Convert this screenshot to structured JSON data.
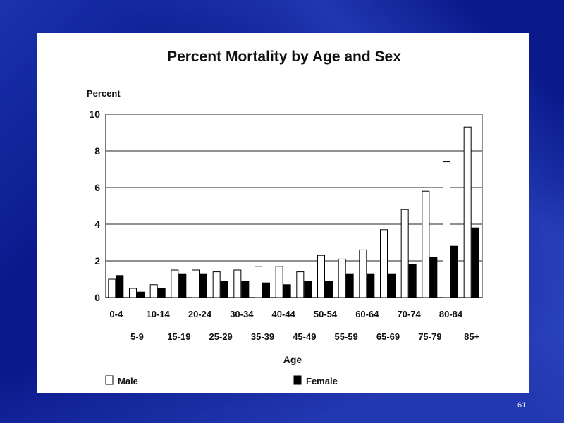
{
  "slide_number": "61",
  "chart_data": {
    "type": "bar",
    "title": "Percent Mortality by Age and Sex",
    "ylabel": "Percent",
    "xlabel": "Age",
    "ylim": [
      0,
      10
    ],
    "yticks": [
      0,
      2,
      4,
      6,
      8,
      10
    ],
    "grid": true,
    "legend_position": "bottom",
    "categories": [
      "0-4",
      "5-9",
      "10-14",
      "15-19",
      "20-24",
      "25-29",
      "30-34",
      "35-39",
      "40-44",
      "45-49",
      "50-54",
      "55-59",
      "60-64",
      "65-69",
      "70-74",
      "75-79",
      "80-84",
      "85+"
    ],
    "series": [
      {
        "name": "Male",
        "color": "#ffffff",
        "values": [
          1.0,
          0.5,
          0.7,
          1.5,
          1.5,
          1.4,
          1.5,
          1.7,
          1.7,
          1.4,
          2.3,
          2.1,
          2.6,
          3.7,
          4.8,
          5.8,
          7.4,
          9.3
        ]
      },
      {
        "name": "Female",
        "color": "#000000",
        "values": [
          1.2,
          0.3,
          0.5,
          1.3,
          1.3,
          0.9,
          0.9,
          0.8,
          0.7,
          0.9,
          0.9,
          1.3,
          1.3,
          1.3,
          1.8,
          2.2,
          2.8,
          3.8
        ]
      }
    ]
  }
}
